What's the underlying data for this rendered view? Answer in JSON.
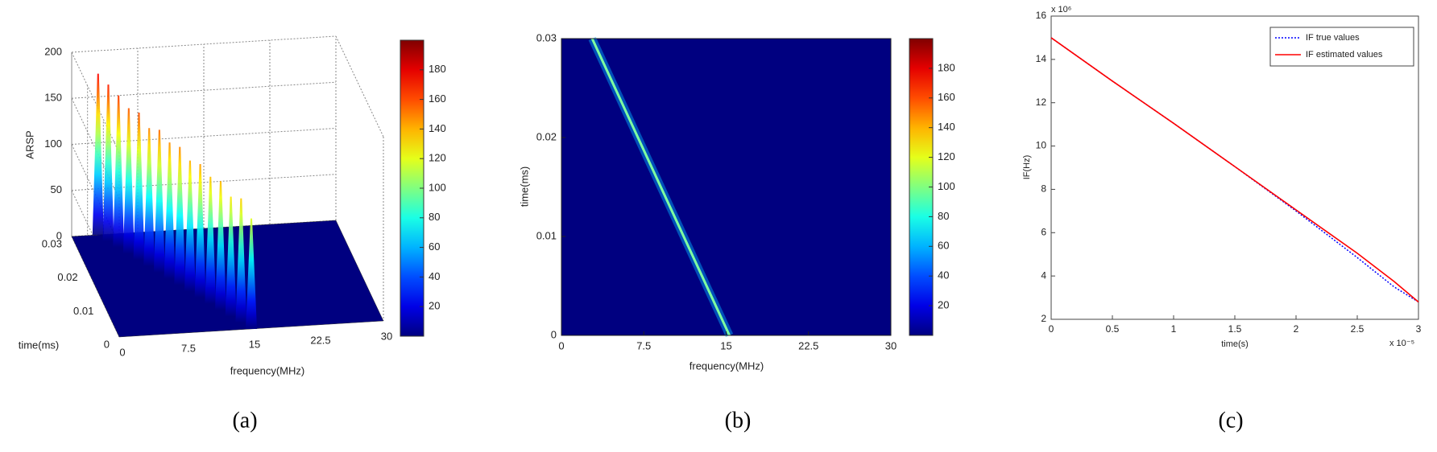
{
  "chart_data": [
    {
      "type": "surface3d",
      "caption": "(a)",
      "zlabel": "ARSP",
      "xlabel": "frequency(MHz)",
      "ylabel": "time(ms)",
      "xlim": [
        0,
        30
      ],
      "xticks": [
        0,
        7.5,
        15,
        22.5,
        30
      ],
      "ylim": [
        0,
        0.03
      ],
      "yticks": [
        0,
        0.01,
        0.02,
        0.03
      ],
      "zlim": [
        0,
        200
      ],
      "zticks": [
        0,
        50,
        100,
        150,
        200
      ],
      "clim": [
        0,
        200
      ],
      "cticks": [
        20,
        40,
        60,
        80,
        100,
        120,
        140,
        160,
        180
      ],
      "colormap": "jet",
      "grid": true,
      "ridge": {
        "time": [
          0,
          0.002,
          0.004,
          0.006,
          0.008,
          0.01,
          0.012,
          0.014,
          0.016,
          0.018,
          0.02,
          0.022,
          0.024,
          0.026,
          0.028,
          0.03
        ],
        "frequency": [
          15,
          14.2,
          13.4,
          12.6,
          11.8,
          11,
          10.2,
          9.4,
          8.6,
          7.8,
          7,
          6.2,
          5.4,
          4.6,
          3.8,
          3
        ],
        "amplitude": [
          120,
          135,
          130,
          140,
          138,
          145,
          142,
          150,
          148,
          155,
          150,
          160,
          158,
          165,
          170,
          175
        ]
      }
    },
    {
      "type": "heatmap",
      "caption": "(b)",
      "xlabel": "frequency(MHz)",
      "ylabel": "time(ms)",
      "xlim": [
        0,
        30
      ],
      "xticks": [
        0,
        7.5,
        15,
        22.5,
        30
      ],
      "ylim": [
        0,
        0.03
      ],
      "yticks": [
        0,
        0.01,
        0.02,
        0.03
      ],
      "clim": [
        0,
        200
      ],
      "cticks": [
        20,
        40,
        60,
        80,
        100,
        120,
        140,
        160,
        180
      ],
      "colormap": "jet",
      "ridge_color": "#7fffa0",
      "ridge": {
        "time": [
          0,
          0.03
        ],
        "frequency": [
          15.3,
          2.8
        ]
      }
    },
    {
      "type": "line",
      "caption": "(c)",
      "xlabel": "time(s)",
      "ylabel": "IF(Hz)",
      "x_exponent": "x 10⁻⁵",
      "y_exponent": "x 10⁶",
      "x": [
        0,
        0.5,
        1,
        1.5,
        2,
        2.5,
        2.8,
        3
      ],
      "xlim": [
        0,
        3
      ],
      "xticks": [
        0,
        0.5,
        1,
        1.5,
        2,
        2.5,
        3
      ],
      "ylim": [
        2,
        16
      ],
      "yticks": [
        2,
        4,
        6,
        8,
        10,
        12,
        14,
        16
      ],
      "legend": "upper right",
      "series": [
        {
          "name": "IF true values",
          "color": "#0000ff",
          "style": "dotted",
          "values": [
            15,
            13.0,
            11.05,
            9.05,
            7.0,
            4.85,
            3.5,
            2.8
          ]
        },
        {
          "name": "IF estimated values",
          "color": "#ff0000",
          "style": "solid",
          "values": [
            15,
            13.0,
            11.05,
            9.05,
            7.05,
            5.05,
            3.75,
            2.8
          ]
        }
      ]
    }
  ]
}
